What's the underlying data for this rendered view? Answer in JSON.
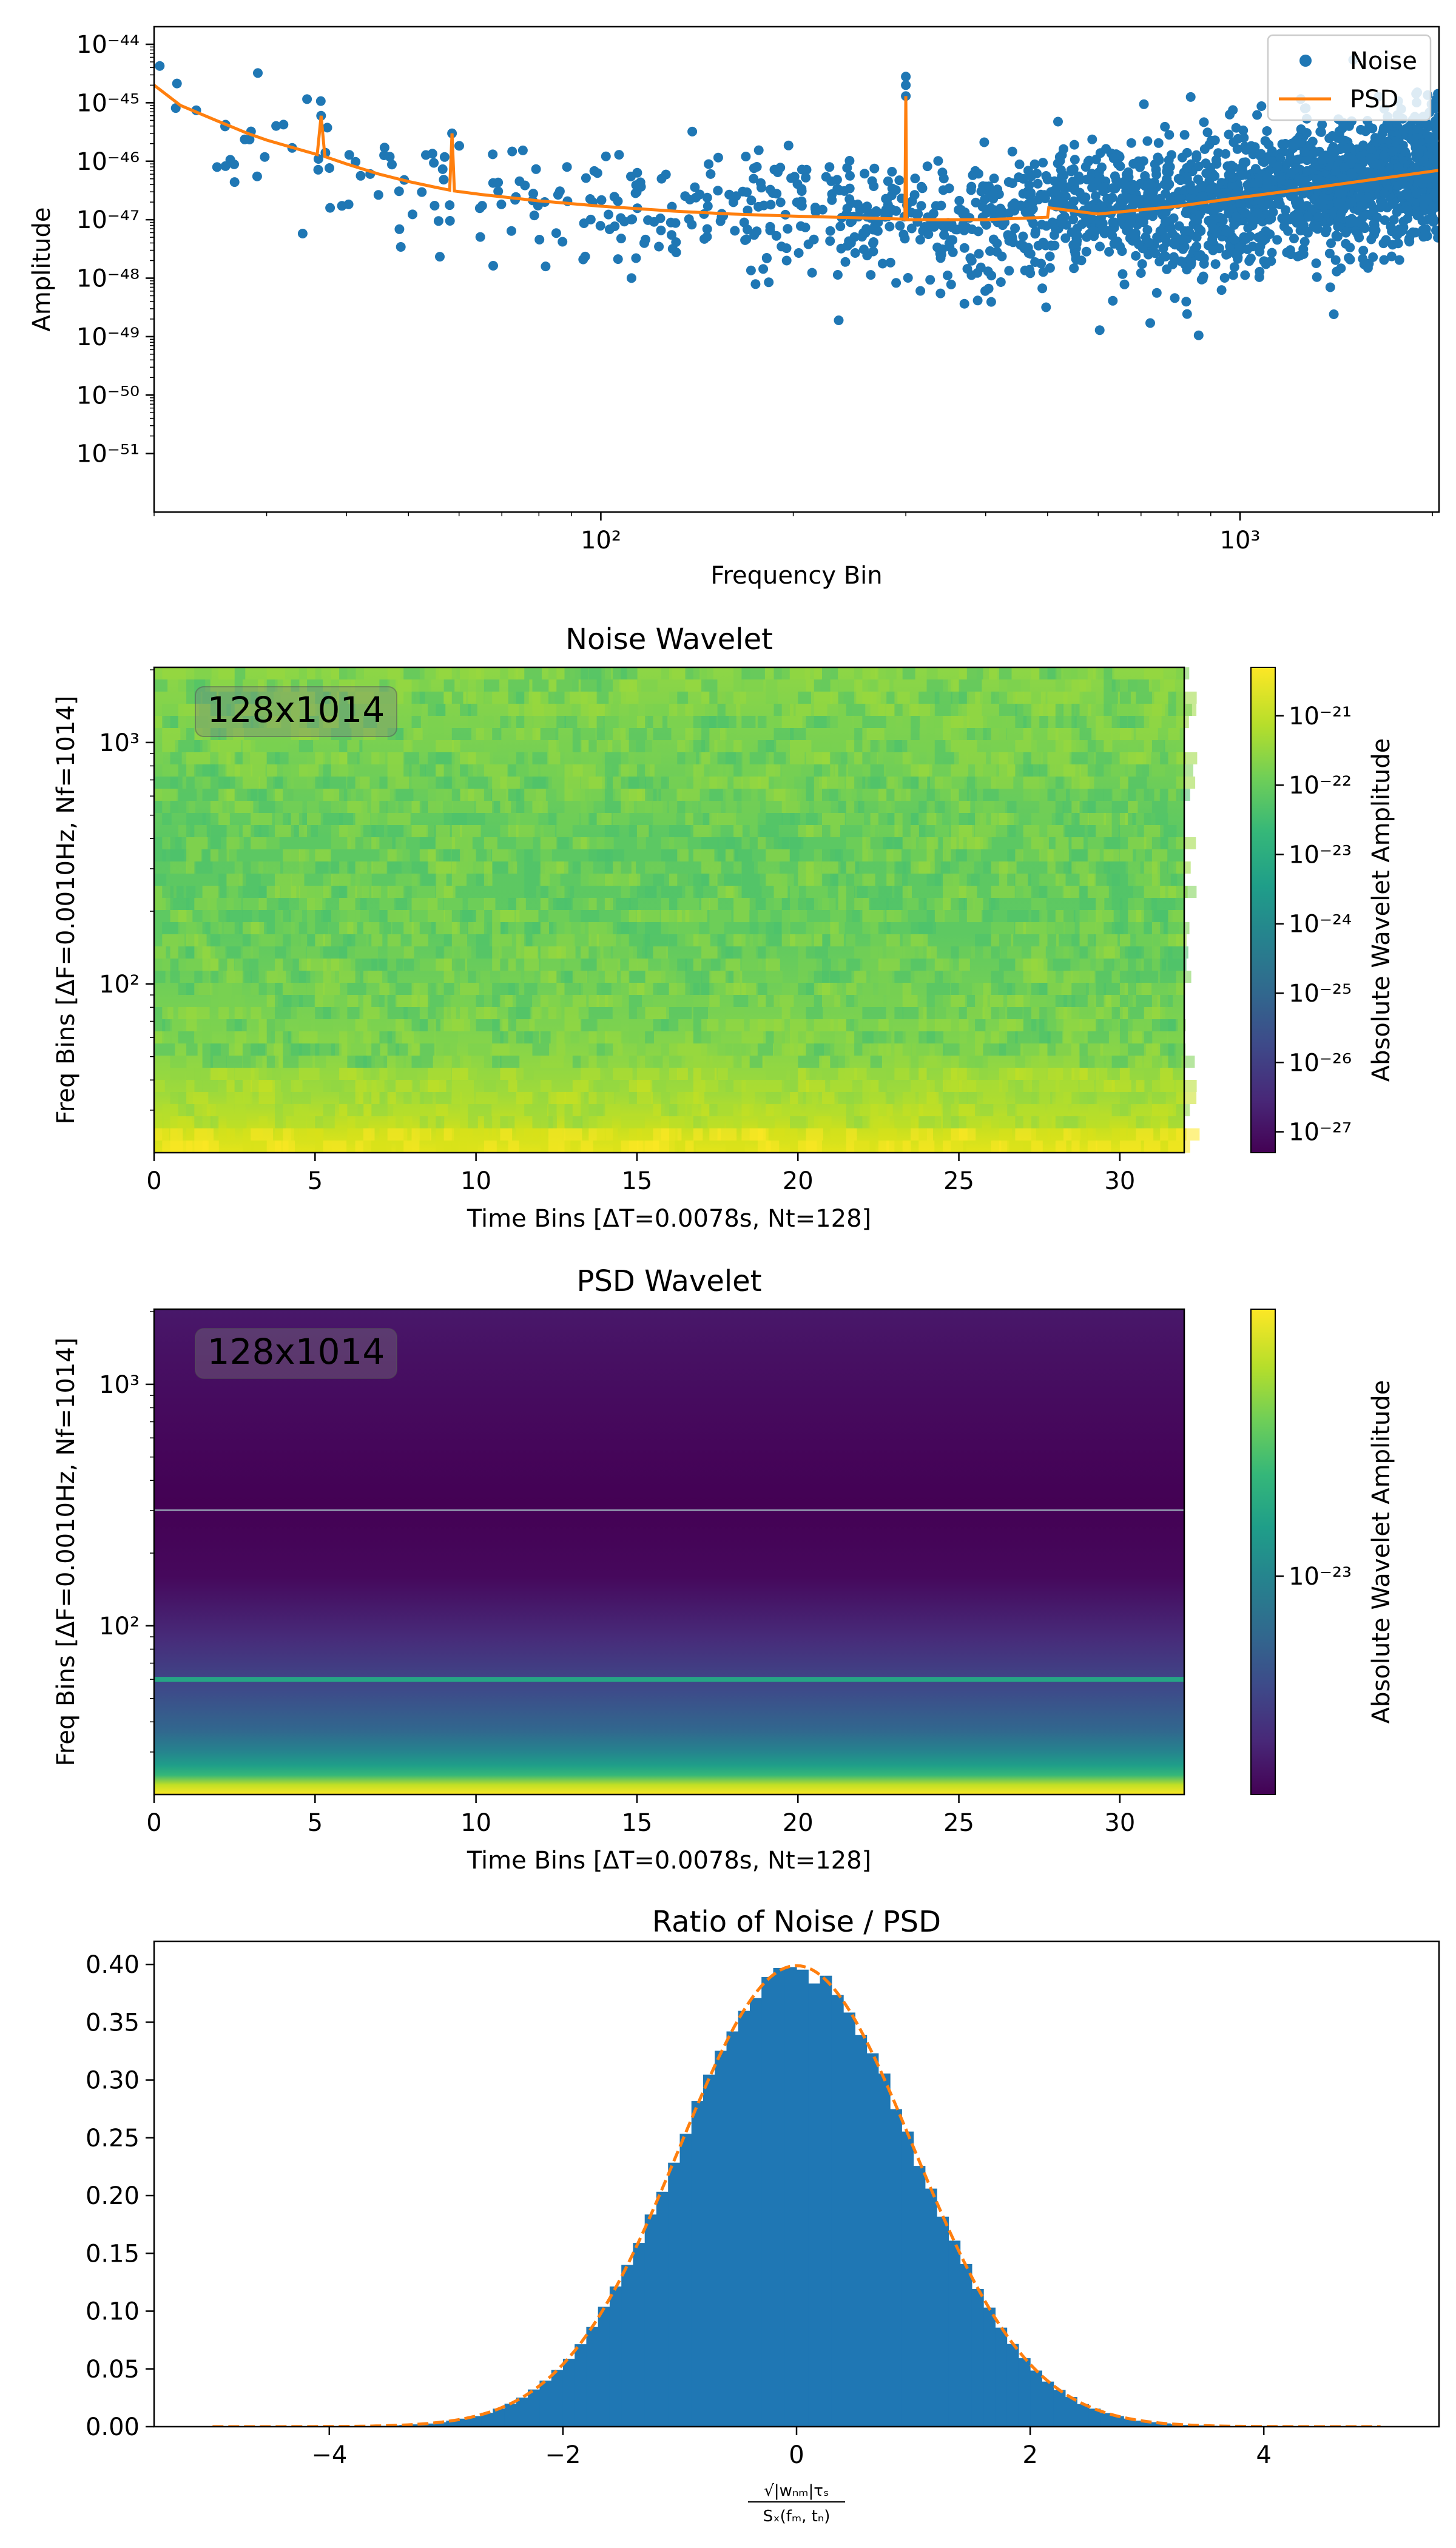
{
  "colors": {
    "noise": "#1f77b4",
    "psd": "#ff7f0e",
    "hist": "#1f77b4",
    "gauss": "#ff7f0e",
    "viridis": [
      "#440154",
      "#482878",
      "#3e4989",
      "#31688e",
      "#26828e",
      "#1f9e89",
      "#35b779",
      "#6ece58",
      "#b5de2b",
      "#fde725"
    ]
  },
  "chart_data": [
    {
      "type": "scatter",
      "xlabel": "Frequency Bin",
      "ylabel": "Amplitude",
      "xscale": "log",
      "yscale": "log",
      "xlim": [
        20,
        2048
      ],
      "ylim": [
        1e-52,
        2e-44
      ],
      "xticks": [
        {
          "value": 100,
          "label": "10²"
        },
        {
          "value": 1000,
          "label": "10³"
        }
      ],
      "yticks": [
        {
          "value": 1e-51,
          "label": "10⁻⁵¹"
        },
        {
          "value": 1e-50,
          "label": "10⁻⁵⁰"
        },
        {
          "value": 1e-49,
          "label": "10⁻⁴⁹"
        },
        {
          "value": 1e-48,
          "label": "10⁻⁴⁸"
        },
        {
          "value": 1e-47,
          "label": "10⁻⁴⁷"
        },
        {
          "value": 1e-46,
          "label": "10⁻⁴⁶"
        },
        {
          "value": 1e-45,
          "label": "10⁻⁴⁵"
        },
        {
          "value": 1e-44,
          "label": "10⁻⁴⁴"
        }
      ],
      "legend": {
        "placement": "upper right",
        "entries": [
          "Noise",
          "PSD"
        ]
      },
      "grid": false,
      "series": [
        {
          "name": "Noise",
          "kind": "scatter",
          "note_density": "dense scatter, approx 2e3 points spread about the PSD curve"
        },
        {
          "name": "PSD",
          "kind": "line",
          "x": [
            20,
            22,
            25,
            28,
            30,
            33,
            36,
            36.5,
            37,
            40,
            45,
            50,
            55,
            58,
            58.5,
            59,
            65,
            80,
            100,
            130,
            160,
            200,
            250,
            299,
            300,
            301,
            350,
            400,
            500,
            502,
            600,
            800,
            1000,
            1300,
            1600,
            2048
          ],
          "y": [
            2e-45,
            9e-46,
            5e-46,
            3e-46,
            2.3e-46,
            1.7e-46,
            1.3e-46,
            6e-46,
            1.2e-46,
            9e-47,
            6e-47,
            4.5e-47,
            3.6e-47,
            3.2e-47,
            3e-46,
            3.1e-47,
            2.7e-47,
            2.1e-47,
            1.7e-47,
            1.4e-47,
            1.25e-47,
            1.15e-47,
            1.08e-47,
            1.02e-47,
            1.3e-45,
            1e-47,
            1e-47,
            1e-47,
            1.1e-47,
            1.6e-47,
            1.25e-47,
            1.7e-47,
            2.4e-47,
            3.5e-47,
            4.8e-47,
            7e-47
          ]
        }
      ]
    },
    {
      "type": "heatmap",
      "title": "Noise Wavelet",
      "annotation": "128x1014",
      "xlabel": "Time Bins [ΔT=0.0078s, Nt=128]",
      "ylabel": "Freq Bins [ΔF=0.0010Hz, Nf=1014]",
      "xlim": [
        0,
        32
      ],
      "ylim": [
        20,
        2048
      ],
      "yscale": "log",
      "xticks": [
        0,
        5,
        10,
        15,
        20,
        25,
        30
      ],
      "yticks": [
        {
          "value": 100,
          "label": "10²"
        },
        {
          "value": 1000,
          "label": "10³"
        }
      ],
      "colorbar": {
        "label": "Absolute Wavelet Amplitude",
        "scale": "log",
        "range": [
          5e-28,
          5e-21
        ],
        "ticks": [
          {
            "value": 1e-27,
            "label": "10⁻²⁷"
          },
          {
            "value": 1e-26,
            "label": "10⁻²⁶"
          },
          {
            "value": 1e-25,
            "label": "10⁻²⁵"
          },
          {
            "value": 1e-24,
            "label": "10⁻²⁴"
          },
          {
            "value": 1e-23,
            "label": "10⁻²³"
          },
          {
            "value": 1e-22,
            "label": "10⁻²²"
          },
          {
            "value": 1e-21,
            "label": "10⁻²¹"
          }
        ]
      },
      "pattern": "noisy; bright yellow near lowest frequencies, green mid, slightly bluer-green near 200-400"
    },
    {
      "type": "heatmap",
      "title": "PSD Wavelet",
      "annotation": "128x1014",
      "xlabel": "Time Bins [ΔT=0.0078s, Nt=128]",
      "ylabel": "Freq Bins [ΔF=0.0010Hz, Nf=1014]",
      "xlim": [
        0,
        32
      ],
      "ylim": [
        20,
        2048
      ],
      "yscale": "log",
      "xticks": [
        0,
        5,
        10,
        15,
        20,
        25,
        30
      ],
      "yticks": [
        {
          "value": 100,
          "label": "10²"
        },
        {
          "value": 1000,
          "label": "10³"
        }
      ],
      "colorbar": {
        "label": "Absolute Wavelet Amplitude",
        "scale": "log",
        "ticks": [
          {
            "value": 1e-23,
            "label": "10⁻²³"
          }
        ]
      },
      "bands": [
        {
          "freq": 60,
          "color_note": "teal line"
        },
        {
          "freq": 300,
          "color_note": "faint light line"
        }
      ],
      "pattern": "smooth; yellow at bottom fading to dark purple by ~100, darkest near 300, slightly lighter purple toward top"
    },
    {
      "type": "bar",
      "title": "Ratio of Noise / PSD",
      "xlabel_num": "√|wₙₘ|τₛ",
      "xlabel_den": "Sₓ(fₘ, tₙ)",
      "xlim": [
        -5.5,
        5.5
      ],
      "ylim": [
        0,
        0.42
      ],
      "xticks": [
        -4,
        -2,
        0,
        2,
        4
      ],
      "yticks": [
        0.0,
        0.05,
        0.1,
        0.15,
        0.2,
        0.25,
        0.3,
        0.35,
        0.4
      ],
      "histogram": {
        "distribution": "approximately standard normal",
        "bins_range": [
          -5,
          5
        ],
        "bin_count": 100
      },
      "overlay": {
        "type": "line",
        "style": "dashed",
        "function": "standard normal pdf"
      }
    }
  ]
}
